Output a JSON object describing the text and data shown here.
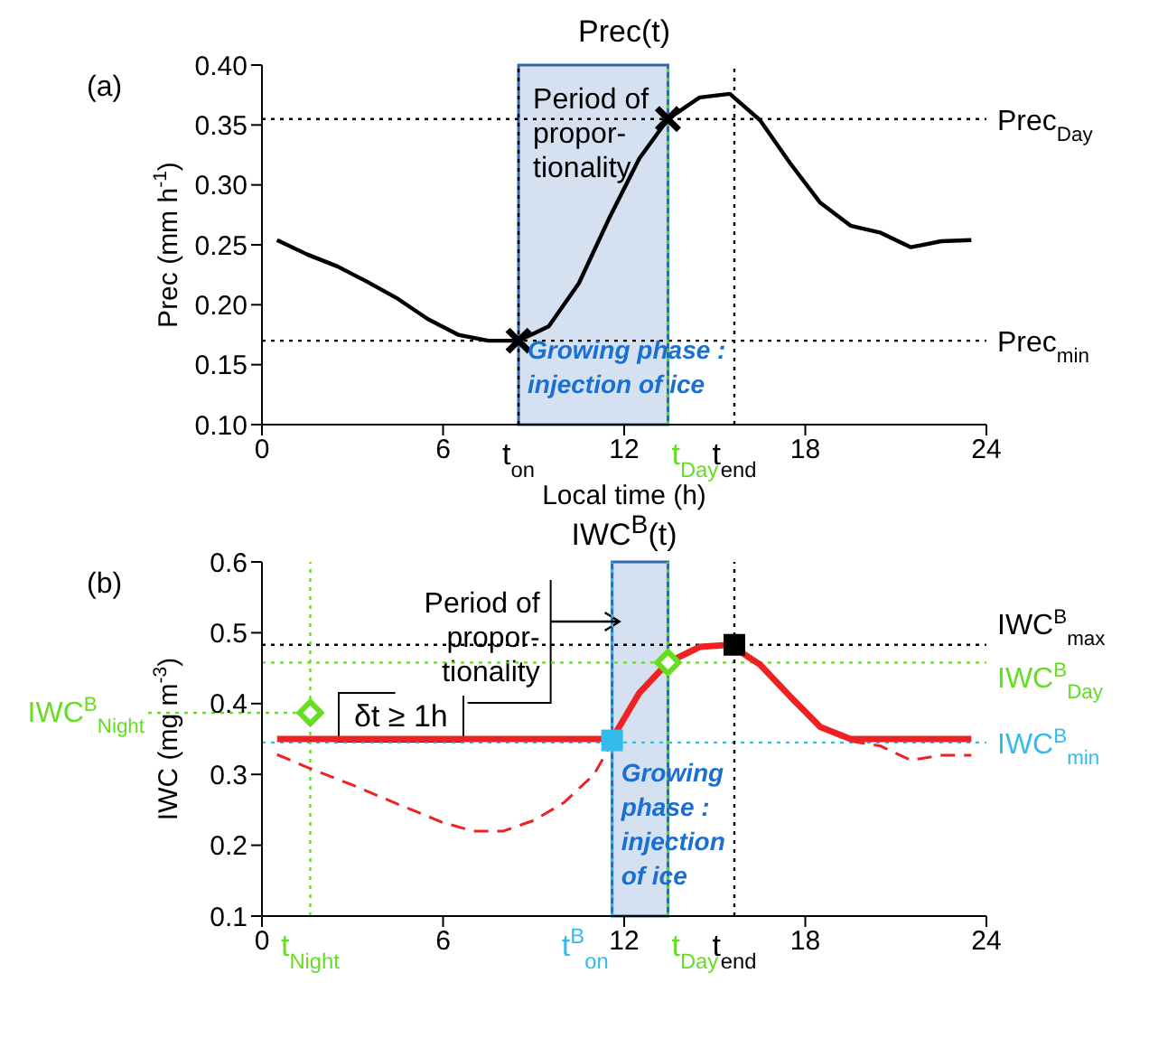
{
  "chart_data": [
    {
      "type": "line",
      "title": "Prec(t)",
      "xlabel": "Local time (h)",
      "ylabel": "Prec (mm h$^{-1}$)",
      "xlim": [
        0,
        24
      ],
      "xticks": [
        0,
        6,
        12,
        18,
        24
      ],
      "ylim": [
        0.1,
        0.4
      ],
      "yticks": [
        {
          "value": 0.1,
          "label": "0.10"
        },
        0.15,
        {
          "value": 0.2,
          "label": "0.20"
        },
        0.25,
        {
          "value": 0.3,
          "label": "0.30"
        },
        0.35,
        {
          "value": 0.4,
          "label": "0.40"
        }
      ],
      "series": [
        {
          "color": "#000000",
          "x": [
            0.5,
            1.5,
            2.5,
            3.5,
            4.5,
            5.5,
            6.5,
            7.5,
            8.5,
            9.0,
            9.5,
            10.5,
            11.5,
            12.5,
            13.45,
            14.5,
            15.5,
            16.5,
            17.5,
            18.5,
            19.5,
            20.5,
            21.5,
            22.5,
            23.5
          ],
          "values": [
            0.254,
            0.242,
            0.232,
            0.219,
            0.205,
            0.188,
            0.175,
            0.17,
            0.17,
            0.176,
            0.182,
            0.218,
            0.272,
            0.322,
            0.355,
            0.373,
            0.376,
            0.354,
            0.318,
            0.285,
            0.266,
            0.26,
            0.248,
            0.253,
            0.254
          ]
        },
        {
          "type": "scatter",
          "marker": "cross",
          "color": "#000000",
          "x": [
            8.5,
            13.45
          ],
          "values": [
            0.17,
            0.355
          ]
        }
      ],
      "bands": [
        {
          "axis": "x",
          "from": 8.5,
          "to": 13.45,
          "label": "Period of propor-tionality",
          "color": "#d5e0f0"
        }
      ],
      "ref_lines": [
        {
          "axis": "y",
          "value": 0.355,
          "label": "Prec$_{Day}$",
          "color": "#000000",
          "line_style": "dotted"
        },
        {
          "axis": "y",
          "value": 0.17,
          "label": "Prec$_{min}$",
          "color": "#000000",
          "line_style": "dotted"
        },
        {
          "axis": "x",
          "value": 8.5,
          "label": "t$_{on}$",
          "color": "#000000",
          "line_style": "dotted"
        },
        {
          "axis": "x",
          "value": 13.45,
          "label": "t$_{Day}$",
          "color": "#66dd22",
          "line_style": "dotted"
        },
        {
          "axis": "x",
          "value": 15.65,
          "label": "t$_{end}$",
          "color": "#000000",
          "line_style": "dotted"
        }
      ],
      "annotations": [
        "(a)",
        {
          "text": "Growing phase : injection of ice",
          "x": 8.5,
          "y": 0.155
        }
      ]
    },
    {
      "type": "line",
      "title": "IWC$^{B}$(t)",
      "ylabel": "IWC (mg m$^{-3}$)",
      "xlim": [
        0,
        24
      ],
      "xticks": [
        0,
        6,
        12,
        18,
        24
      ],
      "ylim": [
        0.1,
        0.6
      ],
      "yticks": [
        0.1,
        0.2,
        0.3,
        0.4,
        0.5,
        0.6
      ],
      "series": [
        {
          "color": "#ee2222",
          "line_style": "dashed",
          "x": [
            0.5,
            1.5,
            3,
            4.5,
            6,
            7,
            8,
            9,
            10,
            11,
            11.6,
            15.5,
            19.5,
            20.5,
            21.5,
            22.5,
            23.5
          ],
          "values": [
            0.328,
            0.31,
            0.285,
            0.258,
            0.232,
            0.22,
            0.22,
            0.235,
            0.26,
            0.3,
            0.345,
            null,
            0.347,
            0.34,
            0.32,
            0.327,
            0.327
          ]
        },
        {
          "color": "#ee2222",
          "x": [
            0.5,
            11.6,
            12.5,
            13.45,
            14.5,
            15.5,
            16.5,
            17.5,
            18.5,
            19.5,
            23.5
          ],
          "values": [
            0.35,
            0.35,
            0.415,
            0.458,
            0.48,
            0.483,
            0.455,
            0.41,
            0.367,
            0.35,
            0.35
          ]
        },
        {
          "type": "scatter",
          "marker": "diamond",
          "color": "#66dd22",
          "x": [
            1.6,
            13.45
          ],
          "values": [
            0.387,
            0.458
          ]
        },
        {
          "type": "scatter",
          "marker": "square",
          "color": "#33bbee",
          "x": [
            11.6
          ],
          "values": [
            0.348
          ]
        },
        {
          "type": "scatter",
          "marker": "square",
          "color": "#000000",
          "x": [
            15.65
          ],
          "values": [
            0.483
          ]
        }
      ],
      "bands": [
        {
          "axis": "x",
          "from": 11.6,
          "to": 13.45,
          "label": "Period of propor-tionality",
          "color": "#d5e0f0"
        }
      ],
      "ref_lines": [
        {
          "axis": "y",
          "value": 0.483,
          "label": "IWC$^{B}$$_{max}$",
          "color": "#000000",
          "line_style": "dotted"
        },
        {
          "axis": "y",
          "value": 0.458,
          "label": "IWC$^{B}$$_{Day}$",
          "color": "#66dd22",
          "line_style": "dotted"
        },
        {
          "axis": "y",
          "value": 0.345,
          "label": "IWC$^{B}$$_{min}$",
          "color": "#33bbee",
          "line_style": "dotted"
        },
        {
          "axis": "x",
          "value": 1.6,
          "label": "t$_{Night}$",
          "color": "#66dd22",
          "line_style": "dotted"
        },
        {
          "axis": "x",
          "value": 11.6,
          "label": "t$^{B}$$_{on}$",
          "color": "#33bbee",
          "line_style": "dotted"
        },
        {
          "axis": "x",
          "value": 13.45,
          "label": "t$_{Day}$",
          "color": "#66dd22",
          "line_style": "dotted"
        },
        {
          "axis": "x",
          "value": 15.65,
          "label": "t$_{end}$",
          "color": "#000000",
          "line_style": "dotted"
        }
      ],
      "annotations": [
        "(b)",
        {
          "text": "IWC$^{B}$$_{Night}$",
          "x": 1.6,
          "y": 0.387
        },
        "δt ≥ 1h",
        {
          "text": "Growing phase : injection of ice",
          "x": 11.6,
          "y": 0.29
        }
      ]
    }
  ]
}
